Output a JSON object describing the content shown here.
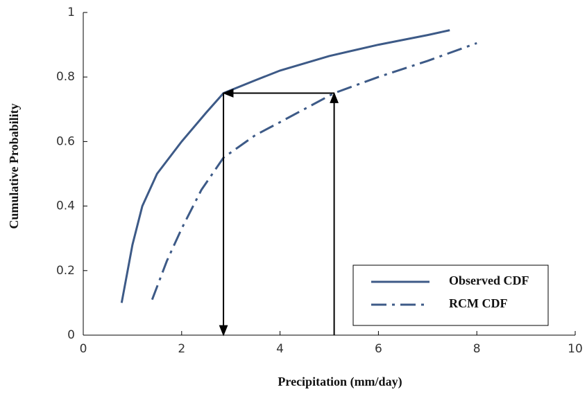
{
  "chart_data": {
    "type": "line",
    "xlabel": "Precipitation (mm/day)",
    "ylabel": "Cumulative Probability",
    "xlim": [
      0,
      10
    ],
    "xticks": [
      0,
      2,
      4,
      6,
      8,
      10
    ],
    "ylim": [
      0,
      1
    ],
    "yticks": [
      0,
      0.2,
      0.4,
      0.6,
      0.8,
      1
    ],
    "series": [
      {
        "name": "Observed CDF",
        "color": "#3d5a87",
        "linestyle": "solid",
        "x": [
          0.78,
          1.0,
          1.2,
          1.5,
          2.0,
          2.5,
          2.85,
          3.5,
          4,
          5,
          6,
          7,
          7.45
        ],
        "values": [
          0.1,
          0.28,
          0.4,
          0.5,
          0.6,
          0.69,
          0.75,
          0.79,
          0.82,
          0.865,
          0.9,
          0.93,
          0.945
        ]
      },
      {
        "name": "RCM CDF",
        "color": "#3d5a87",
        "linestyle": "dashdot",
        "x": [
          1.4,
          1.7,
          2.0,
          2.4,
          2.85,
          3.5,
          4,
          5.1,
          6,
          7,
          8
        ],
        "values": [
          0.11,
          0.23,
          0.33,
          0.45,
          0.55,
          0.62,
          0.66,
          0.75,
          0.8,
          0.85,
          0.905
        ]
      }
    ],
    "arrows": [
      {
        "x": [
          5.1,
          5.1
        ],
        "y": [
          0,
          0.75
        ]
      },
      {
        "x": [
          5.1,
          2.85
        ],
        "y": [
          0.75,
          0.75
        ]
      },
      {
        "x": [
          2.85,
          2.85
        ],
        "y": [
          0.75,
          0
        ]
      }
    ],
    "legend": "lower right"
  }
}
